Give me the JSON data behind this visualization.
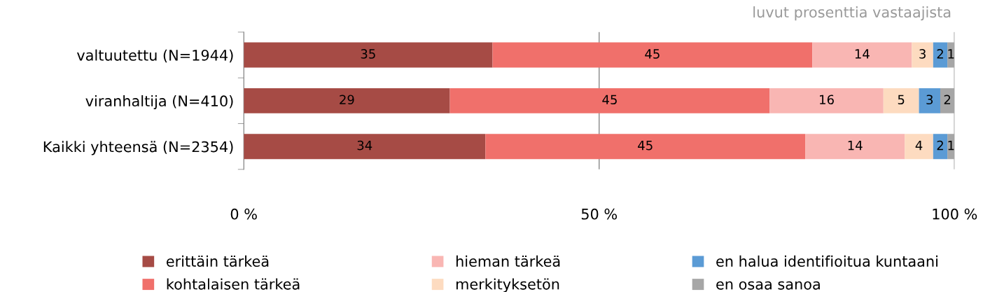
{
  "chart_data": {
    "type": "bar",
    "orientation": "horizontal",
    "stacked": true,
    "categories": [
      "valtuutettu (N=1944)",
      "viranhaltija (N=410)",
      "Kaikki yhteensä (N=2354)"
    ],
    "series": [
      {
        "name": "erittäin tärkeä",
        "color": "#a64b45",
        "values": [
          35,
          29,
          34
        ]
      },
      {
        "name": "kohtalaisen tärkeä",
        "color": "#f0706b",
        "values": [
          45,
          45,
          45
        ]
      },
      {
        "name": "hieman tärkeä",
        "color": "#f9b6b3",
        "values": [
          14,
          16,
          14
        ]
      },
      {
        "name": "merkityksetön",
        "color": "#fddbc0",
        "values": [
          3,
          5,
          4
        ]
      },
      {
        "name": "en halua identifioitua kuntaani",
        "color": "#5b9bd5",
        "values": [
          2,
          3,
          2
        ]
      },
      {
        "name": "en osaa sanoa",
        "color": "#a6a6a6",
        "values": [
          1,
          2,
          1
        ]
      }
    ],
    "xlim": [
      0,
      100
    ],
    "xticks": [
      {
        "value": 0,
        "label": "0 %"
      },
      {
        "value": 50,
        "label": "50 %"
      },
      {
        "value": 100,
        "label": "100 %"
      }
    ],
    "grid": "x",
    "legend": "bottom",
    "data_labels": true,
    "annotations": [
      "luvut prosenttia vastaajista"
    ]
  }
}
